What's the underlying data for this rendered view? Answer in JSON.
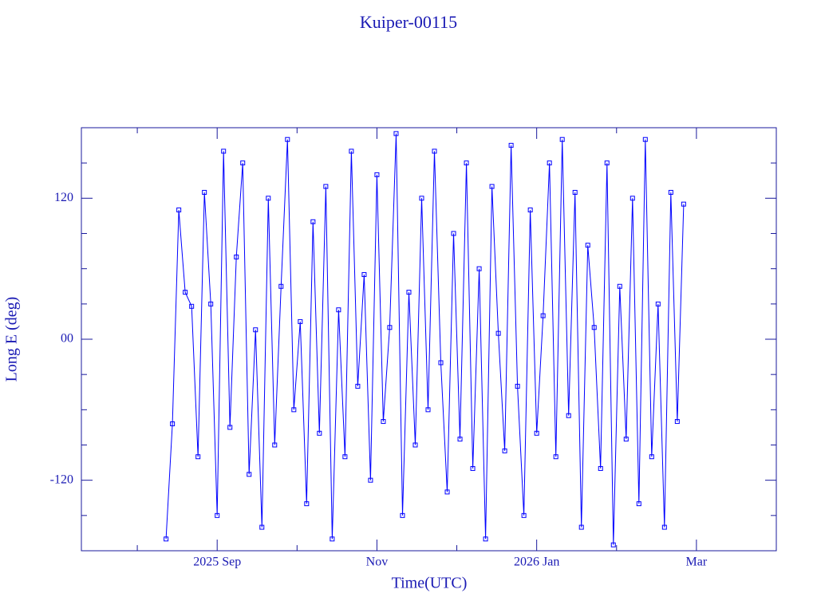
{
  "chart_data": {
    "type": "line",
    "title": "Kuiper-00115",
    "xlabel": "Time(UTC)",
    "ylabel": "Long E (deg)",
    "xlim": [
      7.3,
      16.0
    ],
    "xticks": [
      {
        "value": 9,
        "label": "2025 Sep"
      },
      {
        "value": 11,
        "label": "Nov"
      },
      {
        "value": 13,
        "label": "2026 Jan"
      },
      {
        "value": 15,
        "label": "Mar"
      }
    ],
    "xminorticks": [
      8,
      10,
      12,
      14
    ],
    "ylim": [
      -180,
      180
    ],
    "yticks": [
      -120,
      {
        "value": 0,
        "label": "00"
      },
      120
    ],
    "yminorticks": [
      -150,
      -90,
      -60,
      -30,
      30,
      60,
      90,
      150
    ],
    "marker": "square",
    "x": [
      8.36,
      8.44,
      8.52,
      8.6,
      8.68,
      8.76,
      8.84,
      8.92,
      9.0,
      9.08,
      9.16,
      9.24,
      9.32,
      9.4,
      9.48,
      9.56,
      9.64,
      9.72,
      9.8,
      9.88,
      9.96,
      10.04,
      10.12,
      10.2,
      10.28,
      10.36,
      10.44,
      10.52,
      10.6,
      10.68,
      10.76,
      10.84,
      10.92,
      11.0,
      11.08,
      11.16,
      11.24,
      11.32,
      11.4,
      11.48,
      11.56,
      11.64,
      11.72,
      11.8,
      11.88,
      11.96,
      12.04,
      12.12,
      12.2,
      12.28,
      12.36,
      12.44,
      12.52,
      12.6,
      12.68,
      12.76,
      12.84,
      12.92,
      13.0,
      13.08,
      13.16,
      13.24,
      13.32,
      13.4,
      13.48,
      13.56,
      13.64,
      13.72,
      13.8,
      13.88,
      13.96,
      14.04,
      14.12,
      14.2,
      14.28,
      14.36,
      14.44,
      14.52,
      14.6,
      14.68,
      14.76,
      14.84
    ],
    "series": [
      {
        "color": "#0000ff",
        "values": [
          -170,
          -72,
          110,
          40,
          28,
          -100,
          125,
          30,
          -150,
          160,
          -75,
          70,
          150,
          -115,
          8,
          -160,
          120,
          -90,
          45,
          170,
          -60,
          15,
          -140,
          100,
          -80,
          130,
          -170,
          25,
          -100,
          160,
          -40,
          55,
          -120,
          140,
          -70,
          10,
          175,
          -150,
          40,
          -90,
          120,
          -60,
          160,
          -20,
          -130,
          90,
          -85,
          150,
          -110,
          60,
          -170,
          130,
          5,
          -95,
          165,
          -40,
          -150,
          110,
          -80,
          20,
          150,
          -100,
          170,
          -65,
          125,
          -160,
          80,
          10,
          -110,
          150,
          -175,
          45,
          -85,
          120,
          -140,
          170,
          -100,
          30,
          -160,
          125,
          -70,
          115
        ]
      }
    ]
  }
}
